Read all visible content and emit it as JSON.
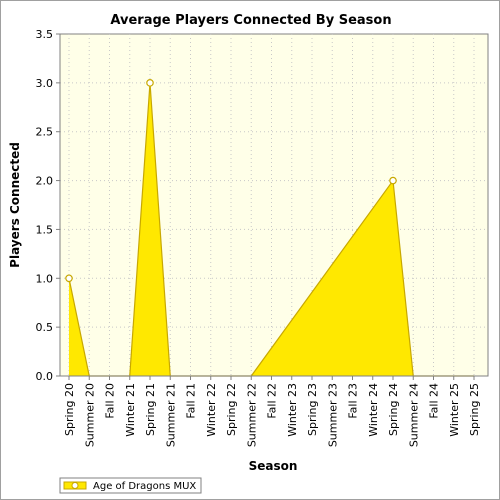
{
  "chart_data": {
    "type": "area",
    "title": "Average Players Connected By Season",
    "xlabel": "Season",
    "ylabel": "Players Connected",
    "ylim": [
      0,
      3.5
    ],
    "y_ticks": [
      "0.0",
      "0.5",
      "1.0",
      "1.5",
      "2.0",
      "2.5",
      "3.0",
      "3.5"
    ],
    "grid": true,
    "legend_position": "bottom-left",
    "categories": [
      "Spring 20",
      "Summer 20",
      "Fall 20",
      "Winter 21",
      "Spring 21",
      "Summer 21",
      "Fall 21",
      "Winter 22",
      "Spring 22",
      "Summer 22",
      "Fall 22",
      "Winter 23",
      "Spring 23",
      "Summer 23",
      "Fall 23",
      "Winter 24",
      "Spring 24",
      "Summer 24",
      "Fall 24",
      "Winter 25",
      "Spring 25"
    ],
    "series": [
      {
        "name": "Age of Dragons MUX",
        "color": "#ffe800",
        "line_color": "#c8a800",
        "values": [
          1,
          0,
          0,
          0,
          3,
          0,
          0,
          0,
          0,
          0,
          null,
          null,
          null,
          null,
          null,
          null,
          2,
          0,
          0,
          0,
          0
        ]
      }
    ]
  },
  "colors": {
    "plot_background": "#ffffe8",
    "gridline": "#c8c8c8"
  }
}
